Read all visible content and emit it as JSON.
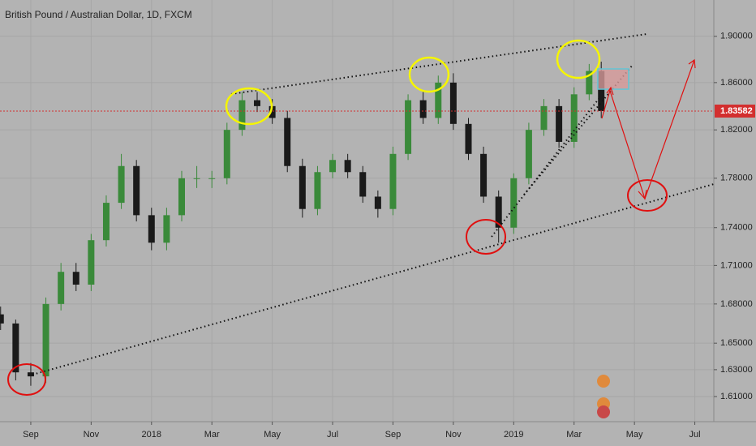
{
  "chart_data": {
    "type": "candlestick",
    "title": "British Pound / Australian Dollar, 1D, FXCM",
    "x": [
      -1.0,
      -0.5,
      0,
      0.5,
      1.0,
      1.5,
      2.0,
      2.5,
      3.0,
      3.5,
      4.0,
      4.5,
      5.0,
      5.5,
      6.0,
      6.5,
      7.0,
      7.5,
      8.0,
      8.5,
      9.0,
      9.5,
      10.0,
      10.5,
      11.0,
      11.5,
      12.0,
      12.5,
      13.0,
      13.5,
      14.0,
      14.5,
      15.0,
      15.5,
      16.0,
      16.5,
      17.0,
      17.5,
      18.0,
      18.5,
      18.9
    ],
    "open": [
      1.672,
      1.665,
      1.628,
      1.625,
      1.68,
      1.705,
      1.695,
      1.73,
      1.76,
      1.79,
      1.75,
      1.728,
      1.75,
      1.78,
      1.78,
      1.78,
      1.82,
      1.845,
      1.84,
      1.83,
      1.79,
      1.755,
      1.785,
      1.795,
      1.785,
      1.765,
      1.755,
      1.8,
      1.845,
      1.83,
      1.86,
      1.825,
      1.8,
      1.765,
      1.74,
      1.78,
      1.82,
      1.84,
      1.81,
      1.85,
      1.87
    ],
    "high": [
      1.678,
      1.668,
      1.635,
      1.685,
      1.712,
      1.712,
      1.735,
      1.766,
      1.8,
      1.795,
      1.756,
      1.756,
      1.786,
      1.79,
      1.786,
      1.826,
      1.852,
      1.852,
      1.846,
      1.836,
      1.796,
      1.79,
      1.8,
      1.8,
      1.79,
      1.77,
      1.806,
      1.85,
      1.852,
      1.866,
      1.868,
      1.83,
      1.806,
      1.77,
      1.784,
      1.826,
      1.846,
      1.846,
      1.856,
      1.876,
      1.878
    ],
    "low": [
      1.66,
      1.622,
      1.618,
      1.62,
      1.675,
      1.69,
      1.69,
      1.725,
      1.755,
      1.745,
      1.722,
      1.722,
      1.745,
      1.772,
      1.772,
      1.775,
      1.815,
      1.835,
      1.825,
      1.785,
      1.748,
      1.75,
      1.78,
      1.78,
      1.76,
      1.748,
      1.75,
      1.795,
      1.825,
      1.825,
      1.82,
      1.795,
      1.76,
      1.728,
      1.735,
      1.775,
      1.815,
      1.805,
      1.805,
      1.845,
      1.83
    ],
    "close": [
      1.665,
      1.628,
      1.625,
      1.68,
      1.705,
      1.695,
      1.73,
      1.76,
      1.79,
      1.75,
      1.728,
      1.75,
      1.78,
      1.78,
      1.78,
      1.82,
      1.845,
      1.84,
      1.83,
      1.79,
      1.755,
      1.785,
      1.795,
      1.785,
      1.765,
      1.755,
      1.8,
      1.845,
      1.83,
      1.86,
      1.825,
      1.8,
      1.765,
      1.74,
      1.78,
      1.82,
      1.84,
      1.81,
      1.85,
      1.87,
      1.83582
    ],
    "up_color": "#3a8a3a",
    "down_color": "#1a1a1a",
    "log": true,
    "ylim": [
      1.5915,
      1.932
    ],
    "yticks": [
      {
        "value": 1.9,
        "label": "1.90000"
      },
      {
        "value": 1.86,
        "label": "1.86000"
      },
      {
        "value": 1.82,
        "label": "1.82000"
      },
      {
        "value": 1.78,
        "label": "1.78000"
      },
      {
        "value": 1.74,
        "label": "1.74000"
      },
      {
        "value": 1.71,
        "label": "1.71000"
      },
      {
        "value": 1.68,
        "label": "1.68000"
      },
      {
        "value": 1.65,
        "label": "1.65000"
      },
      {
        "value": 1.63,
        "label": "1.63000"
      },
      {
        "value": 1.61,
        "label": "1.61000"
      }
    ],
    "xlim": [
      -1.02,
      22.63
    ],
    "xticks": [
      {
        "value": 0,
        "label": "Sep"
      },
      {
        "value": 2,
        "label": "Nov"
      },
      {
        "value": 4,
        "label": "2018"
      },
      {
        "value": 6,
        "label": "Mar"
      },
      {
        "value": 8,
        "label": "May"
      },
      {
        "value": 10,
        "label": "Jul"
      },
      {
        "value": 12,
        "label": "Sep"
      },
      {
        "value": 14,
        "label": "Nov"
      },
      {
        "value": 16,
        "label": "2019"
      },
      {
        "value": 18,
        "label": "Mar"
      },
      {
        "value": 20,
        "label": "May"
      },
      {
        "value": 22,
        "label": "Jul"
      }
    ],
    "last_price": 1.83582,
    "last_price_color": "#d32f2f",
    "grid": true
  }
}
